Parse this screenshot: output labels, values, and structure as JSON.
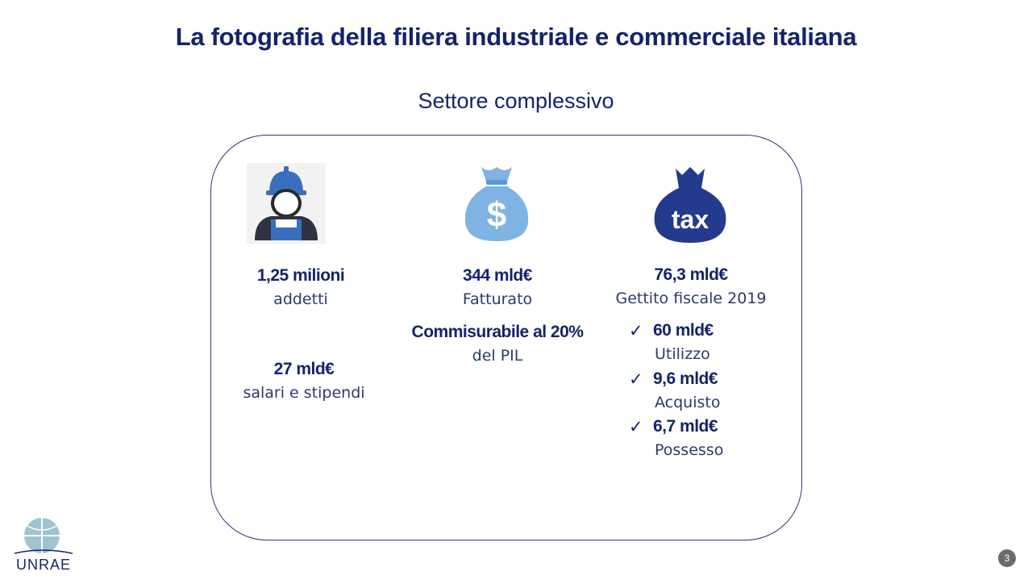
{
  "slide": {
    "title": "La fotografia della filiera industriale e commerciale italiana",
    "subtitle": "Settore complessivo",
    "page_number": "3"
  },
  "columns": {
    "workers": {
      "icon": "worker-icon",
      "value": "1,25 milioni",
      "label": "addetti",
      "value2": "27 mld€",
      "label2": "salari e stipendi"
    },
    "revenue": {
      "icon": "money-bag-icon",
      "icon_glyph": "$",
      "value": "344 mld€",
      "label": "Fatturato",
      "value2": "Commisurabile al 20%",
      "label2": "del PIL"
    },
    "tax": {
      "icon": "tax-bag-icon",
      "icon_glyph": "tax",
      "value": "76,3 mld€",
      "label": "Gettito fiscale 2019",
      "items": [
        {
          "value": "60 mld€",
          "label": "Utilizzo"
        },
        {
          "value": "9,6 mld€",
          "label": "Acquisto"
        },
        {
          "value": "6,7 mld€",
          "label": "Possesso"
        }
      ]
    }
  },
  "logo": {
    "text": "UNRAE"
  },
  "colors": {
    "primary": "#14246a",
    "light_blue": "#7fb3e3",
    "icon_blue": "#3a6fc0"
  }
}
